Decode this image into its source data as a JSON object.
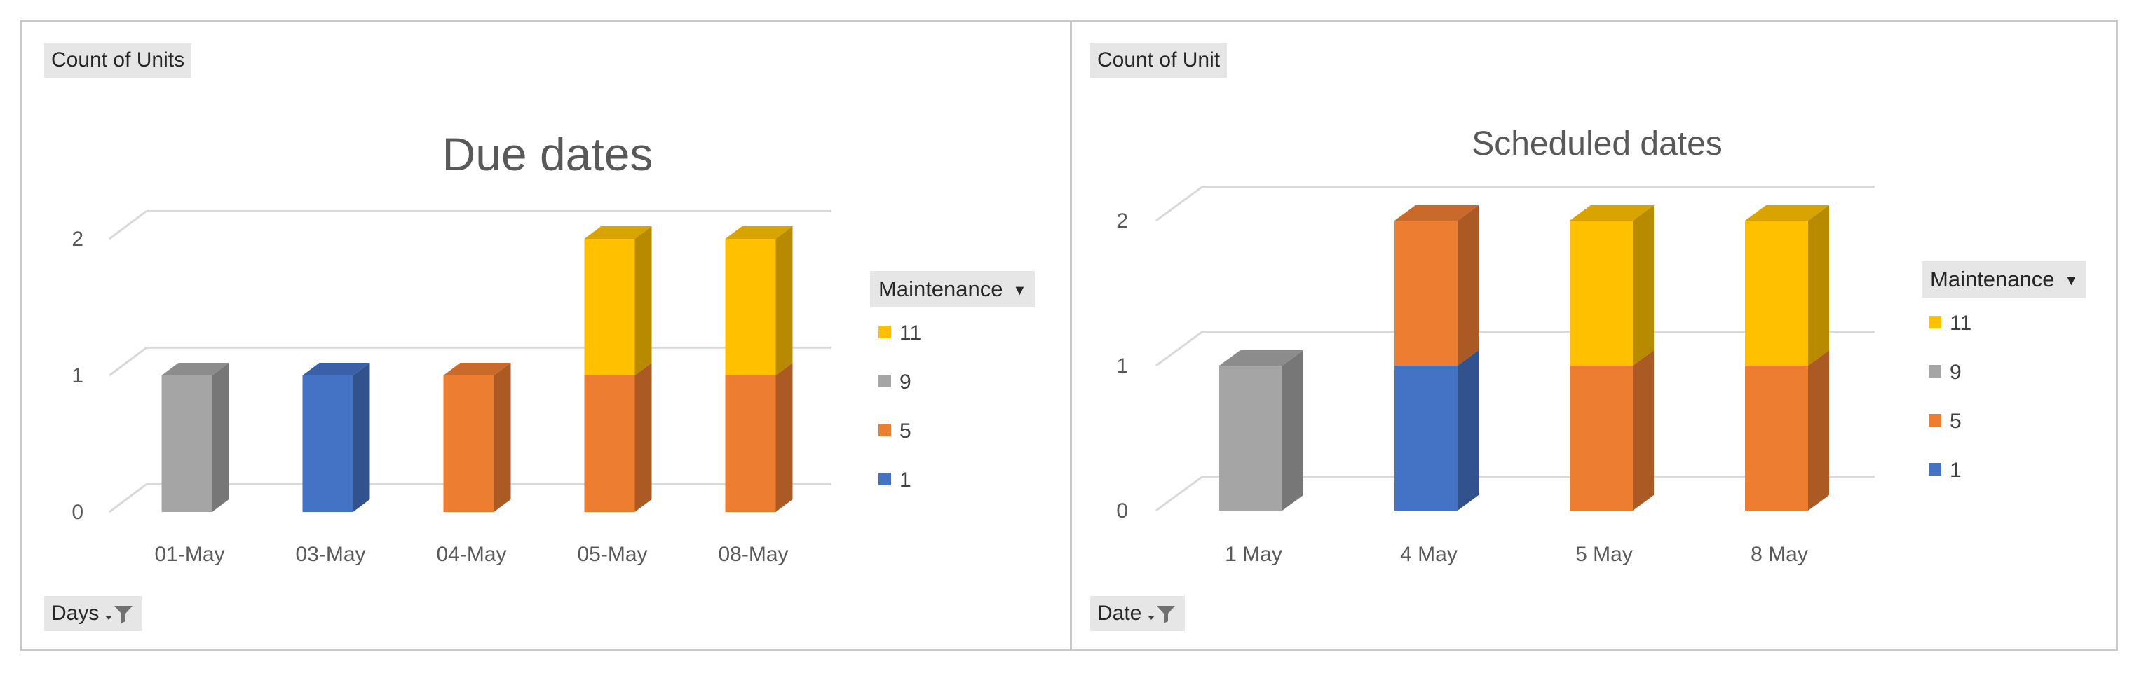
{
  "colors": {
    "11": "#FFC000",
    "9": "#A5A5A5",
    "5": "#ED7D31",
    "1": "#4472C4"
  },
  "charts": {
    "left": {
      "value_field_label": "Count of Units",
      "axis_field_label": "Days",
      "legend_header": "Maintenance",
      "legend": [
        "11",
        "9",
        "5",
        "1"
      ]
    },
    "right": {
      "value_field_label": "Count of Unit",
      "axis_field_label": "Date",
      "legend_header": "Maintenance",
      "legend": [
        "11",
        "9",
        "5",
        "1"
      ]
    }
  },
  "chart_data": [
    {
      "type": "bar",
      "stacked": true,
      "title": "Due dates",
      "categories": [
        "01-May",
        "03-May",
        "04-May",
        "05-May",
        "08-May"
      ],
      "series": [
        {
          "name": "1",
          "values": [
            0,
            1,
            0,
            0,
            0
          ]
        },
        {
          "name": "9",
          "values": [
            1,
            0,
            0,
            0,
            0
          ]
        },
        {
          "name": "5",
          "values": [
            0,
            0,
            1,
            1,
            1
          ]
        },
        {
          "name": "11",
          "values": [
            0,
            0,
            0,
            1,
            1
          ]
        }
      ],
      "yticks": [
        "0",
        "1",
        "2"
      ],
      "ylim": [
        0,
        2
      ],
      "grid": true,
      "legend_position": "right"
    },
    {
      "type": "bar",
      "stacked": true,
      "title": "Scheduled dates",
      "categories": [
        "1 May",
        "4 May",
        "5 May",
        "8 May"
      ],
      "series": [
        {
          "name": "1",
          "values": [
            0,
            1,
            0,
            0
          ]
        },
        {
          "name": "9",
          "values": [
            1,
            0,
            0,
            0
          ]
        },
        {
          "name": "5",
          "values": [
            0,
            1,
            1,
            1
          ]
        },
        {
          "name": "11",
          "values": [
            0,
            0,
            1,
            1
          ]
        }
      ],
      "yticks": [
        "0",
        "1",
        "2"
      ],
      "ylim": [
        0,
        2
      ],
      "grid": true,
      "legend_position": "right"
    }
  ]
}
